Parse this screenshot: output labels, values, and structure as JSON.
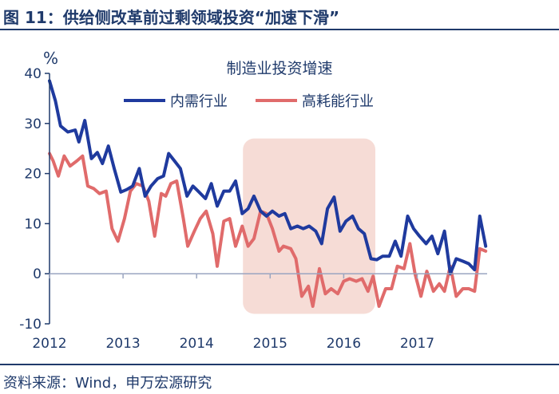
{
  "figure": {
    "title": "图 11：供给侧改革前过剩领域投资“加速下滑”",
    "source": "资料来源：Wind，申万宏源研究"
  },
  "chart_data": {
    "type": "line",
    "title": "制造业投资增速",
    "ylabel": "%",
    "ylim": [
      -10,
      40
    ],
    "yticks": [
      -10,
      0,
      10,
      20,
      30,
      40
    ],
    "xlim": [
      2012.0,
      2017.95
    ],
    "xticks": [
      {
        "value": 2012.0,
        "label": "2012"
      },
      {
        "value": 2013.0,
        "label": "2013"
      },
      {
        "value": 2014.0,
        "label": "2014"
      },
      {
        "value": 2015.0,
        "label": "2015"
      },
      {
        "value": 2016.0,
        "label": "2016"
      },
      {
        "value": 2017.0,
        "label": "2017"
      }
    ],
    "grid": false,
    "legend_position": "top-center",
    "highlight_region": {
      "x_start": 2014.63,
      "x_end": 2016.43,
      "y_start": -8.0,
      "y_end": 27.0,
      "color": "#f6dcd6"
    },
    "colors": {
      "axis": "#1f3a6b",
      "text": "#1f3a6b"
    },
    "series": [
      {
        "name": "内需行业",
        "color": "#1f3a9e",
        "points": [
          [
            2012.0,
            38.5
          ],
          [
            2012.08,
            34.5
          ],
          [
            2012.15,
            29.5
          ],
          [
            2012.25,
            28.3
          ],
          [
            2012.35,
            28.7
          ],
          [
            2012.4,
            26.3
          ],
          [
            2012.48,
            30.6
          ],
          [
            2012.57,
            23.0
          ],
          [
            2012.65,
            24.2
          ],
          [
            2012.72,
            22.0
          ],
          [
            2012.8,
            25.5
          ],
          [
            2012.88,
            21.0
          ],
          [
            2012.97,
            16.3
          ],
          [
            2013.05,
            16.8
          ],
          [
            2013.13,
            17.5
          ],
          [
            2013.22,
            21.0
          ],
          [
            2013.3,
            15.5
          ],
          [
            2013.38,
            17.5
          ],
          [
            2013.47,
            19.0
          ],
          [
            2013.55,
            19.5
          ],
          [
            2013.62,
            24.0
          ],
          [
            2013.7,
            22.5
          ],
          [
            2013.78,
            21.0
          ],
          [
            2013.87,
            15.5
          ],
          [
            2013.95,
            17.5
          ],
          [
            2014.02,
            16.5
          ],
          [
            2014.12,
            15.0
          ],
          [
            2014.2,
            18.0
          ],
          [
            2014.28,
            13.5
          ],
          [
            2014.37,
            16.5
          ],
          [
            2014.45,
            16.5
          ],
          [
            2014.53,
            18.5
          ],
          [
            2014.62,
            12.0
          ],
          [
            2014.7,
            13.0
          ],
          [
            2014.78,
            15.5
          ],
          [
            2014.87,
            12.5
          ],
          [
            2014.95,
            11.5
          ],
          [
            2015.03,
            12.5
          ],
          [
            2015.12,
            11.5
          ],
          [
            2015.2,
            12.0
          ],
          [
            2015.28,
            9.0
          ],
          [
            2015.37,
            9.5
          ],
          [
            2015.45,
            9.0
          ],
          [
            2015.53,
            9.5
          ],
          [
            2015.62,
            8.5
          ],
          [
            2015.7,
            6.0
          ],
          [
            2015.78,
            13.0
          ],
          [
            2015.87,
            15.3
          ],
          [
            2015.95,
            8.5
          ],
          [
            2016.03,
            10.5
          ],
          [
            2016.12,
            11.5
          ],
          [
            2016.2,
            9.0
          ],
          [
            2016.28,
            8.0
          ],
          [
            2016.37,
            3.0
          ],
          [
            2016.45,
            2.8
          ],
          [
            2016.53,
            3.5
          ],
          [
            2016.62,
            3.5
          ],
          [
            2016.7,
            6.5
          ],
          [
            2016.78,
            3.5
          ],
          [
            2016.87,
            11.5
          ],
          [
            2016.95,
            9.0
          ],
          [
            2017.03,
            7.5
          ],
          [
            2017.12,
            6.0
          ],
          [
            2017.2,
            7.5
          ],
          [
            2017.28,
            4.0
          ],
          [
            2017.37,
            8.5
          ],
          [
            2017.45,
            0.0
          ],
          [
            2017.53,
            3.0
          ],
          [
            2017.62,
            2.5
          ],
          [
            2017.7,
            2.0
          ],
          [
            2017.78,
            0.8
          ],
          [
            2017.85,
            11.5
          ],
          [
            2017.93,
            5.5
          ]
        ]
      },
      {
        "name": "高耗能行业",
        "color": "#e06b6b",
        "points": [
          [
            2012.0,
            24.0
          ],
          [
            2012.05,
            22.5
          ],
          [
            2012.12,
            19.5
          ],
          [
            2012.2,
            23.5
          ],
          [
            2012.28,
            21.5
          ],
          [
            2012.37,
            22.5
          ],
          [
            2012.45,
            23.5
          ],
          [
            2012.52,
            17.5
          ],
          [
            2012.6,
            17.0
          ],
          [
            2012.68,
            16.0
          ],
          [
            2012.77,
            16.5
          ],
          [
            2012.85,
            9.0
          ],
          [
            2012.93,
            6.5
          ],
          [
            2013.02,
            11.0
          ],
          [
            2013.1,
            16.5
          ],
          [
            2013.18,
            18.0
          ],
          [
            2013.27,
            17.5
          ],
          [
            2013.35,
            14.5
          ],
          [
            2013.43,
            7.5
          ],
          [
            2013.52,
            16.0
          ],
          [
            2013.58,
            15.5
          ],
          [
            2013.65,
            18.0
          ],
          [
            2013.73,
            18.5
          ],
          [
            2013.82,
            11.0
          ],
          [
            2013.88,
            5.5
          ],
          [
            2013.97,
            8.5
          ],
          [
            2014.05,
            11.0
          ],
          [
            2014.13,
            12.5
          ],
          [
            2014.22,
            8.0
          ],
          [
            2014.28,
            1.5
          ],
          [
            2014.37,
            10.5
          ],
          [
            2014.45,
            11.0
          ],
          [
            2014.53,
            5.5
          ],
          [
            2014.62,
            9.5
          ],
          [
            2014.7,
            5.5
          ],
          [
            2014.78,
            7.0
          ],
          [
            2014.87,
            12.5
          ],
          [
            2014.95,
            12.0
          ],
          [
            2015.03,
            9.0
          ],
          [
            2015.12,
            4.5
          ],
          [
            2015.18,
            5.5
          ],
          [
            2015.28,
            5.0
          ],
          [
            2015.35,
            3.0
          ],
          [
            2015.43,
            -4.5
          ],
          [
            2015.52,
            -2.5
          ],
          [
            2015.58,
            -6.5
          ],
          [
            2015.67,
            1.0
          ],
          [
            2015.75,
            -4.0
          ],
          [
            2015.83,
            -3.0
          ],
          [
            2015.92,
            -4.0
          ],
          [
            2016.0,
            -1.5
          ],
          [
            2016.08,
            -1.0
          ],
          [
            2016.17,
            -1.5
          ],
          [
            2016.25,
            -1.0
          ],
          [
            2016.33,
            -3.5
          ],
          [
            2016.4,
            -0.5
          ],
          [
            2016.48,
            -6.5
          ],
          [
            2016.57,
            -3.0
          ],
          [
            2016.65,
            -3.0
          ],
          [
            2016.73,
            1.5
          ],
          [
            2016.82,
            1.0
          ],
          [
            2016.9,
            6.0
          ],
          [
            2016.97,
            0.0
          ],
          [
            2017.05,
            -4.5
          ],
          [
            2017.13,
            0.5
          ],
          [
            2017.22,
            -3.5
          ],
          [
            2017.3,
            -2.0
          ],
          [
            2017.37,
            -3.5
          ],
          [
            2017.45,
            1.5
          ],
          [
            2017.53,
            -4.5
          ],
          [
            2017.62,
            -3.0
          ],
          [
            2017.7,
            -3.0
          ],
          [
            2017.78,
            -3.5
          ],
          [
            2017.85,
            5.0
          ],
          [
            2017.93,
            4.5
          ]
        ]
      }
    ]
  }
}
